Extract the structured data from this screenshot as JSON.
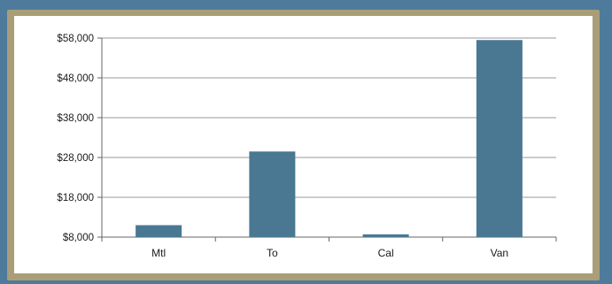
{
  "colors": {
    "outer_border": "#4e7b9b",
    "gold_border": "#a99e78",
    "panel_bg": "#ffffff",
    "bar": "#4a7893",
    "grid": "#9a9a9a",
    "axis": "#666666"
  },
  "chart_data": {
    "type": "bar",
    "categories": [
      "Mtl",
      "To",
      "Cal",
      "Van"
    ],
    "values": [
      11000,
      29500,
      8700,
      57500
    ],
    "title": "",
    "xlabel": "",
    "ylabel": "",
    "ylim": [
      8000,
      58000
    ],
    "yticks": [
      8000,
      18000,
      28000,
      38000,
      48000,
      58000
    ],
    "ytick_labels": [
      "$8,000",
      "$18,000",
      "$28,000",
      "$38,000",
      "$48,000",
      "$58,000"
    ],
    "grid": true,
    "legend": "none"
  }
}
